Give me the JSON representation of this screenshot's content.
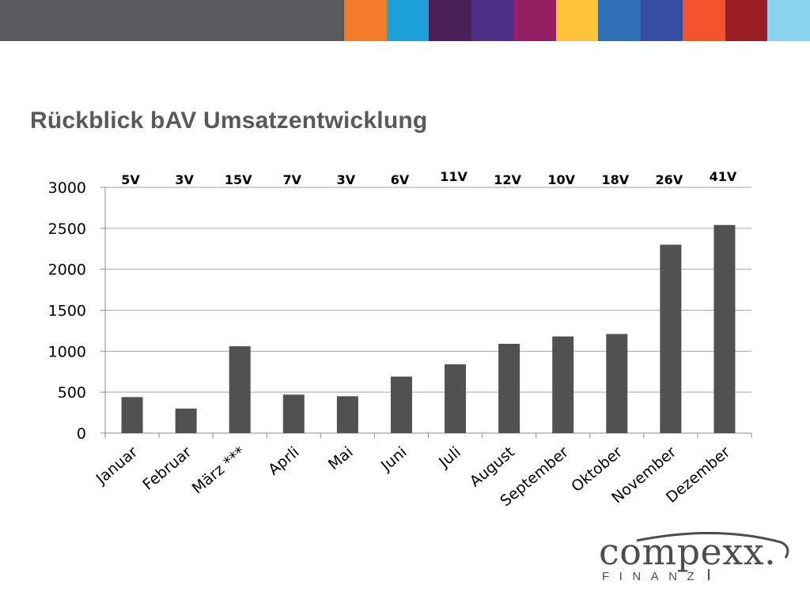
{
  "colors": {
    "top_bar": [
      "#f47b2a",
      "#1ea0d8",
      "#4b2059",
      "#4d2f87",
      "#952064",
      "#ffc33a",
      "#2f6fb7",
      "#354ea2",
      "#f1542b",
      "#9a1f24",
      "#8ad3f1"
    ],
    "top_bar_gray": "#58595b",
    "bar": "#515151",
    "title": "#58595b"
  },
  "slide": {
    "title": "Rückblick  bAV Umsatzentwicklung"
  },
  "chart_data": {
    "type": "bar",
    "categories": [
      "Januar",
      "Februar",
      "März ***",
      "Aprli",
      "Mai",
      "Juni",
      "Juli",
      "August",
      "September",
      "Oktober",
      "November",
      "Dezember"
    ],
    "values": [
      440,
      300,
      1060,
      470,
      450,
      690,
      840,
      1090,
      1180,
      1210,
      2300,
      2540
    ],
    "bar_annotations": [
      "5V",
      "3V",
      "15V",
      "7V",
      "3V",
      "6V",
      "11V",
      "12V",
      "10V",
      "18V",
      "26V",
      "41V"
    ],
    "y_ticks": [
      "0",
      "500",
      "1000",
      "1500",
      "2000",
      "2500",
      "3000"
    ],
    "ylim": [
      0,
      3000
    ],
    "grid": true,
    "legend": "none"
  },
  "logo": {
    "wordmark": "compexx.",
    "subline": "FINANZ"
  }
}
